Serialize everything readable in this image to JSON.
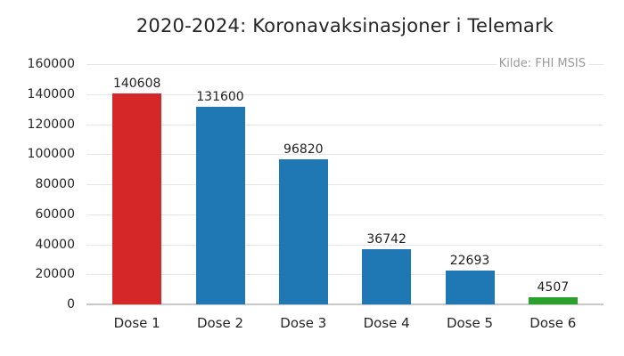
{
  "chart_data": {
    "type": "bar",
    "title": "2020-2024: Koronavaksinasjoner i Telemark",
    "source": "Kilde: FHI MSIS",
    "categories": [
      "Dose 1",
      "Dose 2",
      "Dose 3",
      "Dose 4",
      "Dose 5",
      "Dose 6"
    ],
    "values": [
      140608,
      131600,
      96820,
      36742,
      22693,
      4507
    ],
    "value_labels": [
      "140608",
      "131600",
      "96820",
      "36742",
      "22693",
      "4507"
    ],
    "bar_colors": [
      "#d62728",
      "#1f77b4",
      "#1f77b4",
      "#1f77b4",
      "#1f77b4",
      "#2ca02c"
    ],
    "xlabel": "",
    "ylabel": "",
    "ylim": [
      0,
      160000
    ],
    "ytick_step": 20000,
    "ytick_labels": [
      "0",
      "20000",
      "40000",
      "60000",
      "80000",
      "100000",
      "120000",
      "140000",
      "160000"
    ],
    "grid": true,
    "legend": false,
    "colors": {
      "grid": "#e6e6e6",
      "baseline": "#c9c9cd",
      "text": "#262626",
      "value_text": "#1f1f1f",
      "source_text": "#999999",
      "background": "#ffffff"
    }
  }
}
